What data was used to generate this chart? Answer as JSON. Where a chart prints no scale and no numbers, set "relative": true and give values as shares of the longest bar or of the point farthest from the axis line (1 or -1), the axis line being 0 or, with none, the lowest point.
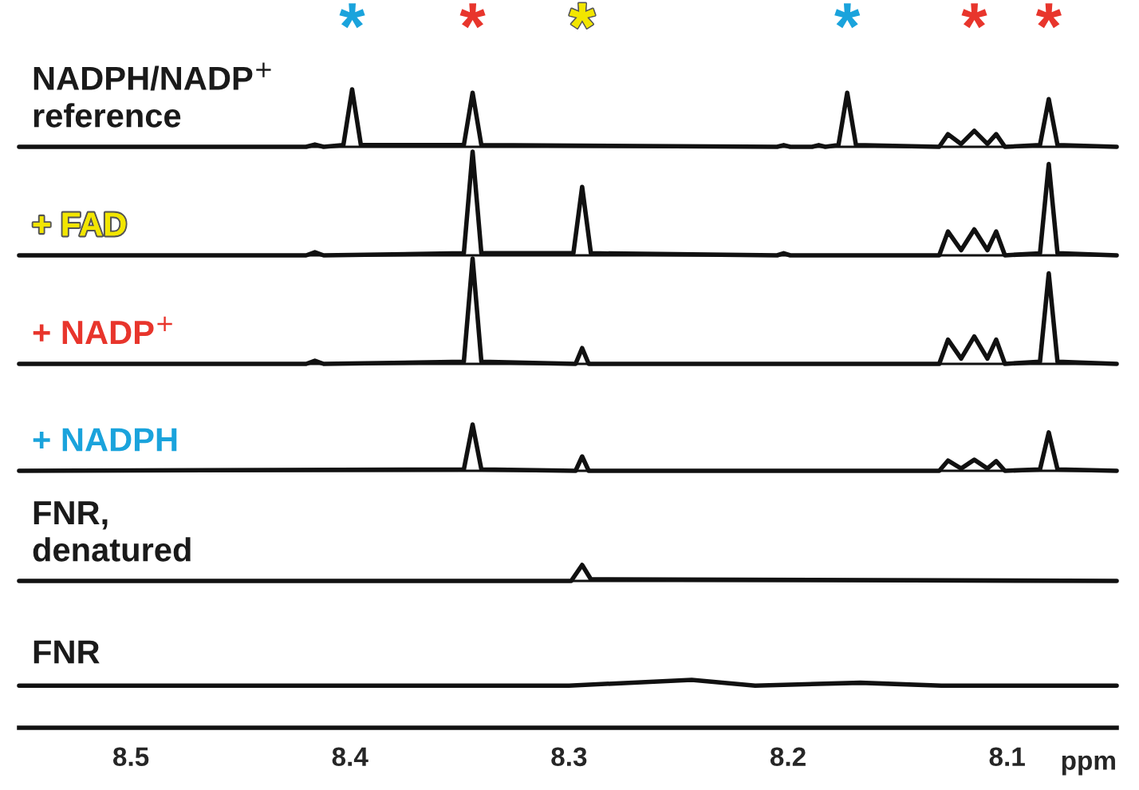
{
  "chart_data": [
    {
      "type": "line",
      "relative": true,
      "title": "NADPH/NADP$^{+}$\nreference",
      "xlim": [
        8.551,
        8.05
      ],
      "tick_labels": false,
      "annotations": [
        {
          "text": "*",
          "x": 8.399,
          "y": 1
        },
        {
          "text": "*",
          "x": 8.344,
          "y": 0.94
        },
        {
          "text": "*",
          "x": 8.294,
          "y": 0
        },
        {
          "text": "*",
          "x": 8.173,
          "y": 0.94
        },
        {
          "text": "*",
          "x": 8.115,
          "y": 0.28
        },
        {
          "text": "*",
          "x": 8.081,
          "y": 0.83
        }
      ],
      "series": [
        {
          "color": "#111111",
          "x": [
            8.551,
            8.42,
            8.416,
            8.412,
            8.403,
            8.399,
            8.395,
            8.348,
            8.344,
            8.34,
            8.205,
            8.202,
            8.199,
            8.189,
            8.186,
            8.183,
            8.177,
            8.173,
            8.169,
            8.131,
            8.127,
            8.121,
            8.115,
            8.109,
            8.105,
            8.101,
            8.085,
            8.081,
            8.077,
            8.05
          ],
          "values": [
            0,
            0,
            0.04,
            0,
            0.03,
            1,
            0.03,
            0.03,
            0.94,
            0.03,
            0,
            0.03,
            0,
            0,
            0.03,
            0,
            0.03,
            0.94,
            0.03,
            0,
            0.22,
            0.05,
            0.28,
            0.05,
            0.22,
            0,
            0.03,
            0.83,
            0.03,
            0
          ]
        }
      ]
    },
    {
      "type": "line",
      "relative": true,
      "title": "+ FAD",
      "xlim": [
        8.551,
        8.05
      ],
      "tick_labels": false,
      "series": [
        {
          "color": "#111111",
          "x": [
            8.551,
            8.42,
            8.416,
            8.412,
            8.348,
            8.344,
            8.34,
            8.298,
            8.294,
            8.29,
            8.205,
            8.202,
            8.199,
            8.131,
            8.127,
            8.121,
            8.115,
            8.109,
            8.105,
            8.101,
            8.085,
            8.081,
            8.077,
            8.05
          ],
          "values": [
            0,
            0,
            0.03,
            0,
            0.02,
            1,
            0.02,
            0.02,
            0.66,
            0.02,
            0,
            0.02,
            0,
            0,
            0.23,
            0.05,
            0.25,
            0.05,
            0.23,
            0,
            0.02,
            0.88,
            0.02,
            0
          ]
        }
      ]
    },
    {
      "type": "line",
      "relative": true,
      "title": "+ NADP$^{+}$",
      "xlim": [
        8.551,
        8.05
      ],
      "tick_labels": false,
      "series": [
        {
          "color": "#111111",
          "x": [
            8.551,
            8.42,
            8.416,
            8.412,
            8.348,
            8.344,
            8.34,
            8.297,
            8.294,
            8.291,
            8.131,
            8.127,
            8.121,
            8.115,
            8.109,
            8.105,
            8.101,
            8.085,
            8.081,
            8.077,
            8.05
          ],
          "values": [
            0,
            0,
            0.03,
            0,
            0.02,
            1,
            0.02,
            0,
            0.15,
            0,
            0,
            0.23,
            0.05,
            0.26,
            0.05,
            0.23,
            0,
            0.02,
            0.86,
            0.02,
            0
          ]
        }
      ]
    },
    {
      "type": "line",
      "relative": true,
      "title": "+ NADPH",
      "xlim": [
        8.551,
        8.05
      ],
      "tick_labels": false,
      "series": [
        {
          "color": "#111111",
          "x": [
            8.551,
            8.348,
            8.344,
            8.34,
            8.297,
            8.294,
            8.291,
            8.131,
            8.127,
            8.121,
            8.115,
            8.109,
            8.105,
            8.101,
            8.085,
            8.081,
            8.077,
            8.05
          ],
          "values": [
            0,
            0.03,
            1,
            0.03,
            0,
            0.31,
            0,
            0,
            0.22,
            0.05,
            0.24,
            0.05,
            0.21,
            0,
            0.03,
            0.83,
            0.03,
            0
          ]
        }
      ]
    },
    {
      "type": "line",
      "relative": true,
      "title": "FNR,\ndenatured",
      "xlim": [
        8.551,
        8.05
      ],
      "tick_labels": false,
      "series": [
        {
          "color": "#111111",
          "x": [
            8.551,
            8.299,
            8.294,
            8.29,
            8.05
          ],
          "values": [
            0,
            0,
            1,
            0.1,
            0
          ]
        }
      ]
    },
    {
      "type": "line",
      "relative": true,
      "title": "FNR",
      "xlim": [
        8.551,
        8.05
      ],
      "xticks": [
        8.5,
        8.4,
        8.3,
        8.2,
        8.1
      ],
      "xlabel": "ppm",
      "tick_labels": "x",
      "series": [
        {
          "color": "#111111",
          "x": [
            8.551,
            8.3,
            8.244,
            8.215,
            8.167,
            8.13,
            8.05
          ],
          "values": [
            0.88,
            0.88,
            1,
            0.88,
            0.94,
            0.88,
            0.88
          ]
        }
      ]
    }
  ]
}
